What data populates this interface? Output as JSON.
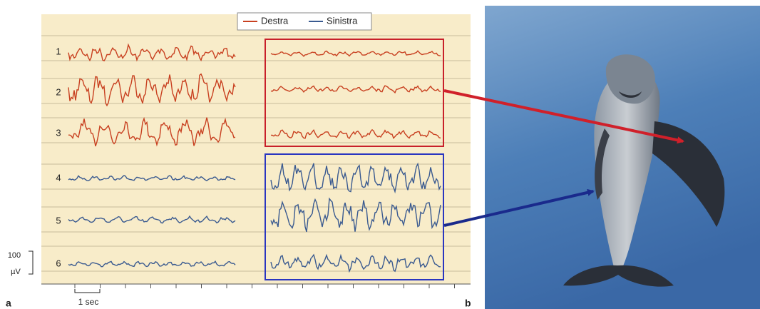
{
  "legend": [
    "Destra",
    "Sinistra"
  ],
  "channels": [
    "1",
    "2",
    "3",
    "4",
    "5",
    "6"
  ],
  "scale": {
    "amplitude": "100",
    "unit": "µV",
    "time": "1 sec"
  },
  "panels": [
    "a",
    "b"
  ]
}
